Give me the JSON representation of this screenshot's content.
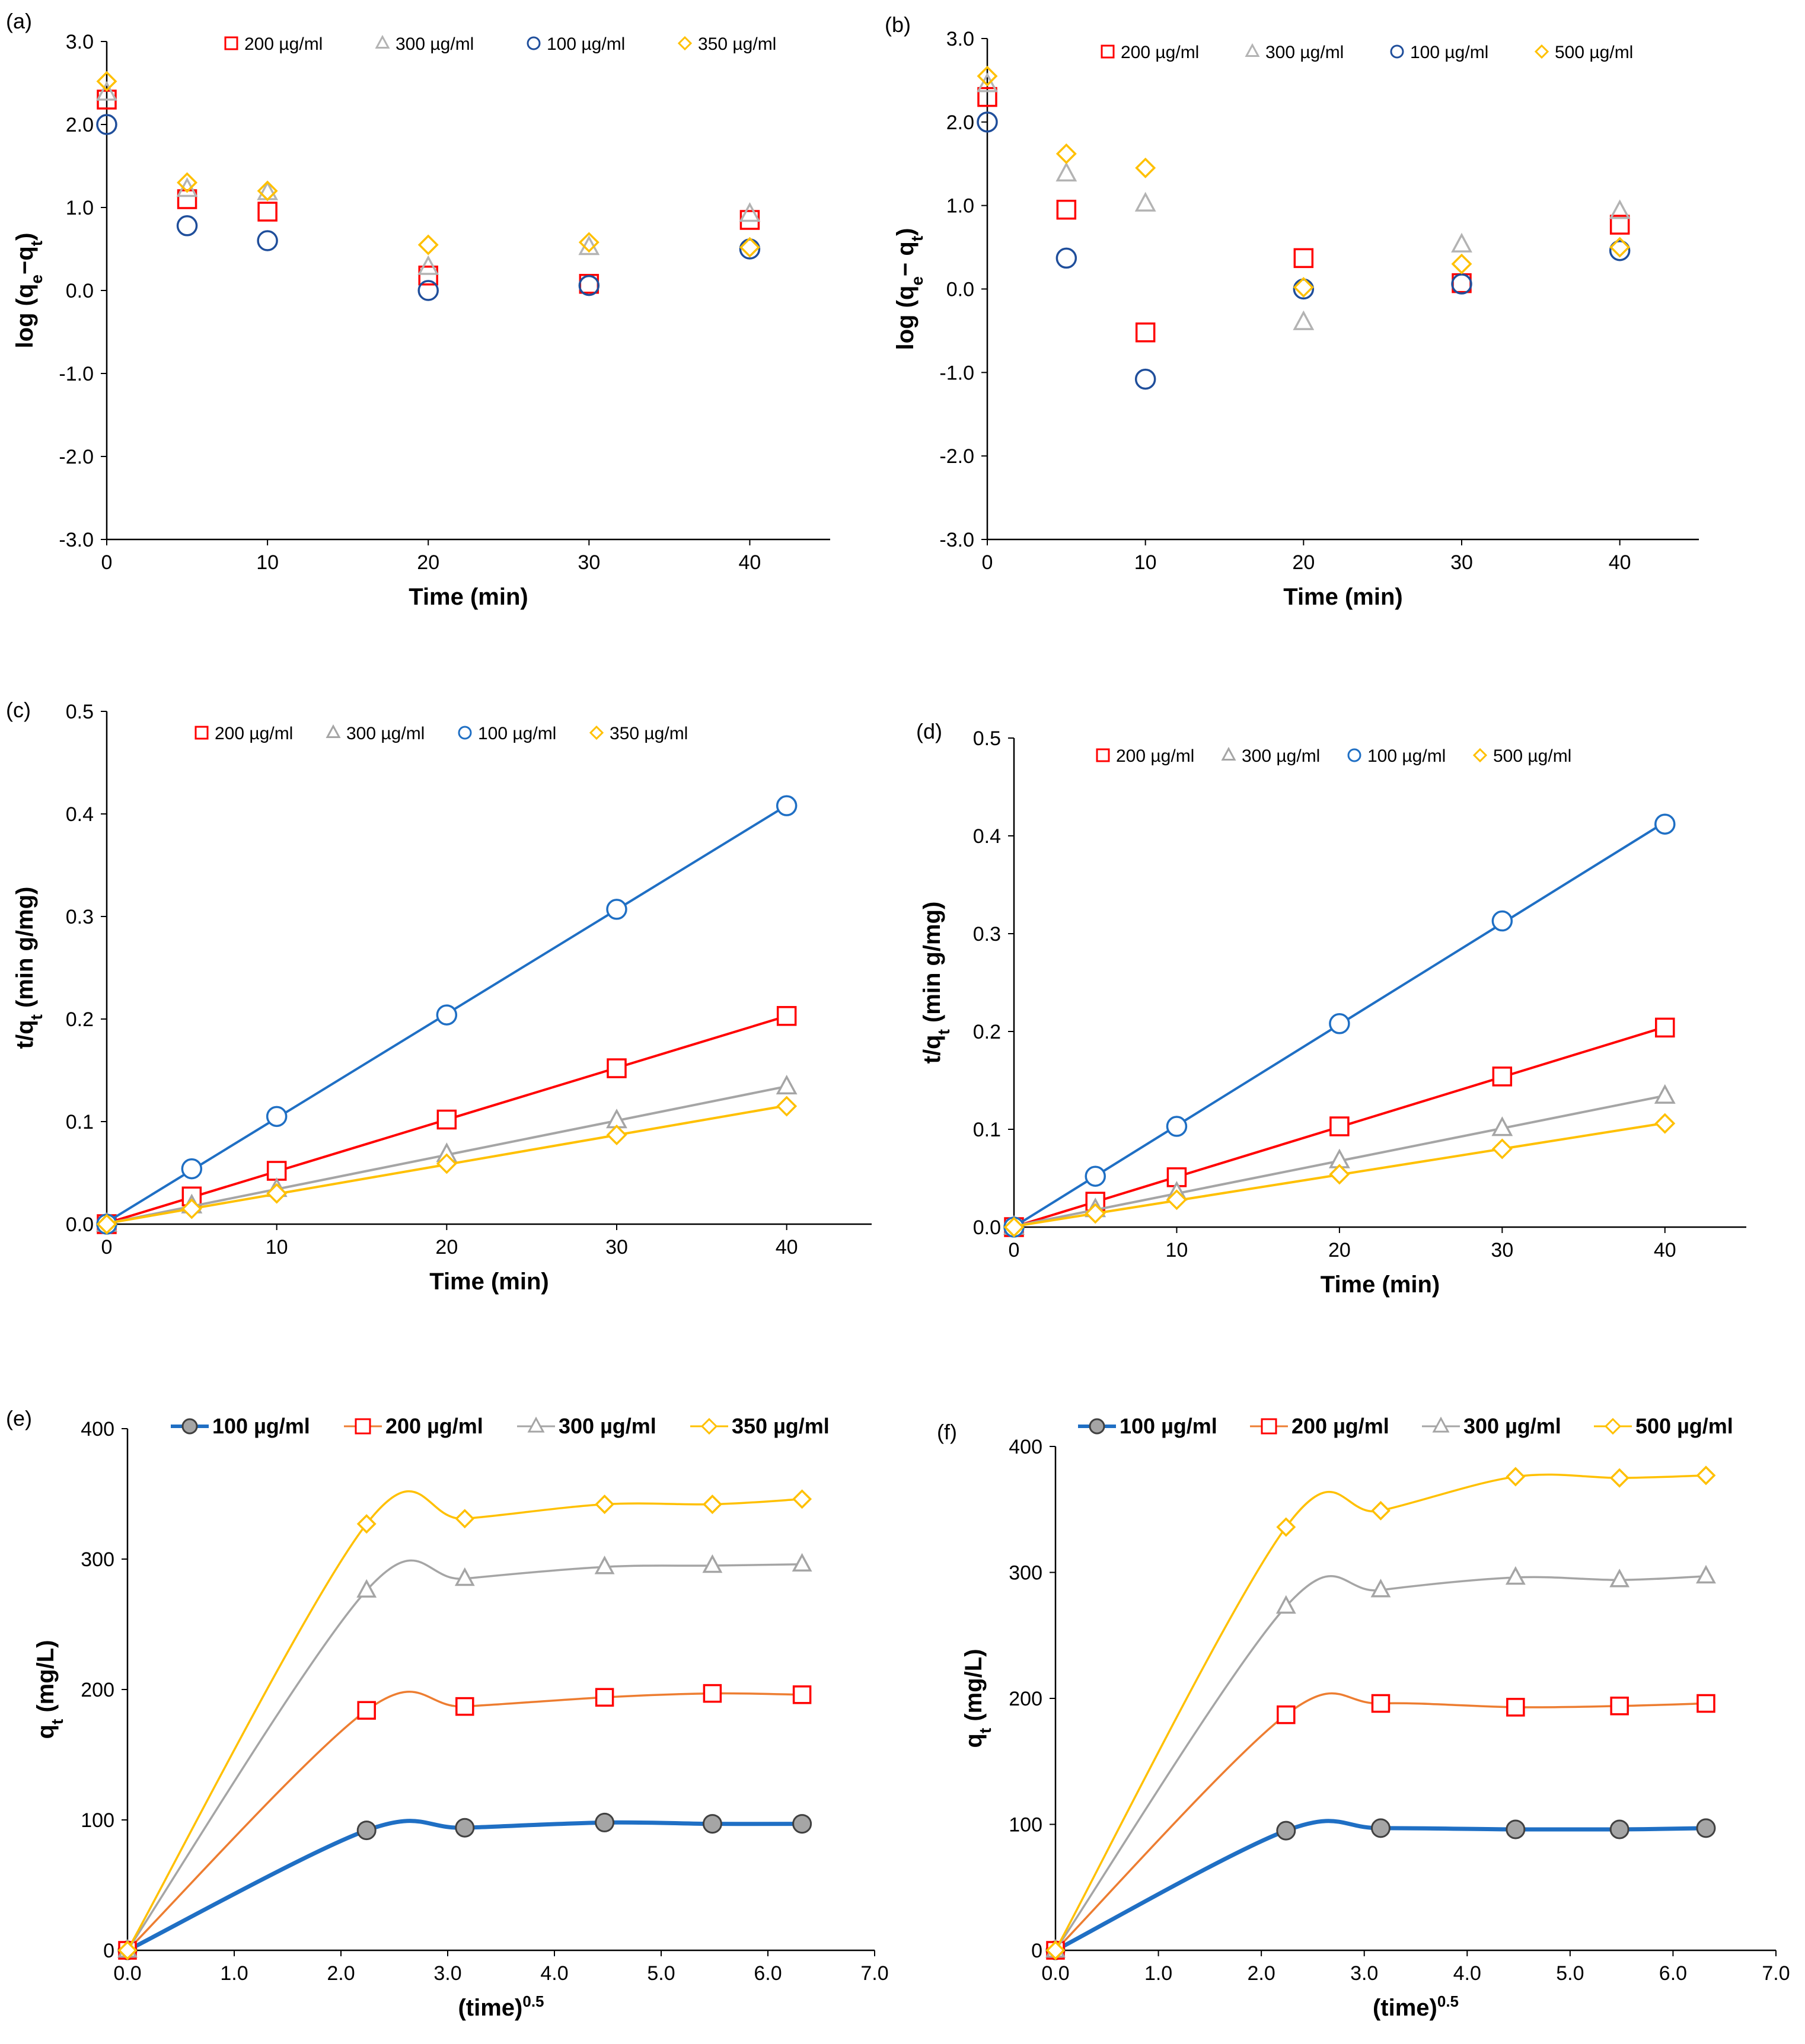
{
  "chart_data": [
    {
      "panel": "(a)",
      "type": "scatter",
      "xlabel": "Time (min)",
      "ylabel": "log (q_e−q_t)",
      "ylabel_parts": [
        "log (q",
        "e",
        "−q",
        "t",
        ")"
      ],
      "xlim": [
        0,
        45
      ],
      "ylim": [
        -3,
        3
      ],
      "x_ticks": [
        0,
        10,
        20,
        30,
        40
      ],
      "y_ticks": [
        -3,
        -2,
        -1,
        0,
        1,
        2,
        3
      ],
      "x_decimals": 0,
      "y_decimals": 1,
      "fit_lines": false,
      "smooth": false,
      "legend_style": "small",
      "series": [
        {
          "name": "200  µg/ml",
          "marker": "square",
          "color": "#ff0000",
          "x": [
            0,
            5,
            10,
            20,
            30,
            40
          ],
          "y": [
            2.3,
            1.1,
            0.95,
            0.18,
            0.08,
            0.85
          ]
        },
        {
          "name": "300  µg/ml",
          "marker": "triangle",
          "color": "#b3b3b3",
          "x": [
            0,
            5,
            10,
            20,
            30,
            40
          ],
          "y": [
            2.38,
            1.22,
            1.18,
            0.28,
            0.52,
            0.92
          ]
        },
        {
          "name": "100  µg/ml",
          "marker": "circle",
          "color": "#1f4e9b",
          "x": [
            0,
            5,
            10,
            20,
            30,
            40
          ],
          "y": [
            2.0,
            0.78,
            0.6,
            0.0,
            0.06,
            0.5
          ]
        },
        {
          "name": "350  µg/ml",
          "marker": "diamond",
          "color": "#ffc000",
          "x": [
            0,
            5,
            10,
            20,
            30,
            40
          ],
          "y": [
            2.52,
            1.3,
            1.2,
            0.55,
            0.58,
            0.52
          ]
        }
      ]
    },
    {
      "panel": "(b)",
      "type": "scatter",
      "xlabel": "Time (min)",
      "ylabel": "log (q_e− q_t)",
      "ylabel_parts": [
        "log (q",
        "e",
        "− q",
        "t",
        ")"
      ],
      "xlim": [
        0,
        45
      ],
      "ylim": [
        -3,
        3
      ],
      "x_ticks": [
        0,
        10,
        20,
        30,
        40
      ],
      "y_ticks": [
        -3,
        -2,
        -1,
        0,
        1,
        2,
        3
      ],
      "x_decimals": 0,
      "y_decimals": 1,
      "fit_lines": false,
      "smooth": false,
      "legend_style": "small",
      "series": [
        {
          "name": "200  µg/ml",
          "marker": "square",
          "color": "#ff0000",
          "x": [
            0,
            5,
            10,
            20,
            30,
            40
          ],
          "y": [
            2.3,
            0.95,
            -0.52,
            0.37,
            0.07,
            0.77
          ]
        },
        {
          "name": "300  µg/ml",
          "marker": "triangle",
          "color": "#b3b3b3",
          "x": [
            0,
            5,
            10,
            20,
            30,
            40
          ],
          "y": [
            2.45,
            1.38,
            1.02,
            -0.4,
            0.53,
            0.93
          ]
        },
        {
          "name": "100  µg/ml",
          "marker": "circle",
          "color": "#1f4e9b",
          "x": [
            0,
            5,
            10,
            20,
            30,
            40
          ],
          "y": [
            2.0,
            0.37,
            -1.08,
            0.0,
            0.06,
            0.46
          ]
        },
        {
          "name": "500  µg/ml",
          "marker": "diamond",
          "color": "#ffc000",
          "x": [
            0,
            5,
            10,
            20,
            30,
            40
          ],
          "y": [
            2.55,
            1.62,
            1.45,
            0.02,
            0.3,
            0.5
          ]
        }
      ]
    },
    {
      "panel": "(c)",
      "type": "scatter",
      "xlabel": "Time (min)",
      "ylabel": "t/q_t (min g/mg)",
      "ylabel_parts": [
        "t/q",
        "t",
        " (min g/mg)"
      ],
      "xlim": [
        0,
        45
      ],
      "ylim": [
        0,
        0.5
      ],
      "x_ticks": [
        0,
        10,
        20,
        30,
        40
      ],
      "y_ticks": [
        0,
        0.1,
        0.2,
        0.3,
        0.4,
        0.5
      ],
      "x_decimals": 0,
      "y_decimals": 1,
      "fit_lines": true,
      "smooth": false,
      "legend_style": "small",
      "series": [
        {
          "name": "200  µg/ml",
          "marker": "square",
          "color": "#ff0000",
          "x": [
            0,
            5,
            10,
            20,
            30,
            40
          ],
          "y": [
            0,
            0.027,
            0.052,
            0.102,
            0.152,
            0.203
          ]
        },
        {
          "name": "300  µg/ml",
          "marker": "triangle",
          "color": "#a5a5a5",
          "x": [
            0,
            5,
            10,
            20,
            30,
            40
          ],
          "y": [
            0,
            0.018,
            0.034,
            0.068,
            0.101,
            0.134
          ]
        },
        {
          "name": "100  µg/ml",
          "marker": "circle",
          "color": "#1f6fc4",
          "x": [
            0,
            5,
            10,
            20,
            30,
            40
          ],
          "y": [
            0,
            0.054,
            0.105,
            0.204,
            0.307,
            0.408
          ]
        },
        {
          "name": "350  µg/ml",
          "marker": "diamond",
          "color": "#ffc000",
          "x": [
            0,
            5,
            10,
            20,
            30,
            40
          ],
          "y": [
            0,
            0.015,
            0.03,
            0.059,
            0.087,
            0.115
          ]
        }
      ]
    },
    {
      "panel": "(d)",
      "type": "scatter",
      "xlabel": "Time (min)",
      "ylabel": "t/q_t (min g/mg)",
      "ylabel_parts": [
        "t/q",
        "t",
        " (min g/mg)"
      ],
      "xlim": [
        0,
        45
      ],
      "ylim": [
        0,
        0.5
      ],
      "x_ticks": [
        0,
        10,
        20,
        30,
        40
      ],
      "y_ticks": [
        0,
        0.1,
        0.2,
        0.3,
        0.4,
        0.5
      ],
      "x_decimals": 0,
      "y_decimals": 1,
      "fit_lines": true,
      "smooth": false,
      "legend_style": "small",
      "series": [
        {
          "name": "200  µg/ml",
          "marker": "square",
          "color": "#ff0000",
          "x": [
            0,
            5,
            10,
            20,
            30,
            40
          ],
          "y": [
            0,
            0.026,
            0.051,
            0.103,
            0.154,
            0.204
          ]
        },
        {
          "name": "300  µg/ml",
          "marker": "triangle",
          "color": "#a5a5a5",
          "x": [
            0,
            5,
            10,
            20,
            30,
            40
          ],
          "y": [
            0,
            0.018,
            0.035,
            0.068,
            0.101,
            0.134
          ]
        },
        {
          "name": "100  µg/ml",
          "marker": "circle",
          "color": "#1f6fc4",
          "x": [
            0,
            5,
            10,
            20,
            30,
            40
          ],
          "y": [
            0,
            0.052,
            0.103,
            0.208,
            0.313,
            0.412
          ]
        },
        {
          "name": "500  µg/ml",
          "marker": "diamond",
          "color": "#ffc000",
          "x": [
            0,
            5,
            10,
            20,
            30,
            40
          ],
          "y": [
            0,
            0.014,
            0.028,
            0.054,
            0.08,
            0.106
          ]
        }
      ]
    },
    {
      "panel": "(e)",
      "type": "line",
      "xlabel": "(time)^0.5",
      "xlabel_parts": [
        "(time)",
        "0.5"
      ],
      "ylabel": "q_t (mg/L)",
      "ylabel_parts": [
        "q",
        "t",
        " (mg/L)"
      ],
      "xlim": [
        0,
        7
      ],
      "ylim": [
        0,
        400
      ],
      "x_ticks": [
        0,
        1,
        2,
        3,
        4,
        5,
        6,
        7
      ],
      "y_ticks": [
        0,
        100,
        200,
        300,
        400
      ],
      "x_decimals": 1,
      "y_decimals": 0,
      "fit_lines": false,
      "smooth": true,
      "legend_style": "large",
      "series": [
        {
          "name": "100  µg/ml",
          "marker": "circle",
          "color": "#1f6fc4",
          "line_color": "#1f6fc4",
          "x": [
            0,
            2.24,
            3.16,
            4.47,
            5.48,
            6.32
          ],
          "y": [
            0,
            92,
            94,
            98,
            97,
            97
          ]
        },
        {
          "name": "200  µg/ml",
          "marker": "square",
          "color": "#ff0000",
          "line_color": "#ed7d31",
          "x": [
            0,
            2.24,
            3.16,
            4.47,
            5.48,
            6.32
          ],
          "y": [
            0,
            184,
            187,
            194,
            197,
            196
          ]
        },
        {
          "name": "300  µg/ml",
          "marker": "triangle",
          "color": "#a5a5a5",
          "line_color": "#a5a5a5",
          "x": [
            0,
            2.24,
            3.16,
            4.47,
            5.48,
            6.32
          ],
          "y": [
            0,
            276,
            285,
            294,
            295,
            296
          ]
        },
        {
          "name": "350  µg/ml",
          "marker": "diamond",
          "color": "#ffc000",
          "line_color": "#ffc000",
          "x": [
            0,
            2.24,
            3.16,
            4.47,
            5.48,
            6.32
          ],
          "y": [
            0,
            327,
            331,
            342,
            342,
            346
          ]
        }
      ]
    },
    {
      "panel": "(f)",
      "type": "line",
      "xlabel": "(time)^0.5",
      "xlabel_parts": [
        "(time)",
        "0.5"
      ],
      "ylabel": "q_t (mg/L)",
      "ylabel_parts": [
        "q",
        "t",
        " (mg/L)"
      ],
      "xlim": [
        0,
        7
      ],
      "ylim": [
        0,
        400
      ],
      "x_ticks": [
        0,
        1,
        2,
        3,
        4,
        5,
        6,
        7
      ],
      "y_ticks": [
        0,
        100,
        200,
        300,
        400
      ],
      "x_decimals": 1,
      "y_decimals": 0,
      "fit_lines": false,
      "smooth": true,
      "legend_style": "large",
      "series": [
        {
          "name": "100  µg/ml",
          "marker": "circle",
          "color": "#1f6fc4",
          "line_color": "#1f6fc4",
          "x": [
            0,
            2.24,
            3.16,
            4.47,
            5.48,
            6.32
          ],
          "y": [
            0,
            95,
            97,
            96,
            96,
            97
          ]
        },
        {
          "name": "200  µg/ml",
          "marker": "square",
          "color": "#ff0000",
          "line_color": "#ed7d31",
          "x": [
            0,
            2.24,
            3.16,
            4.47,
            5.48,
            6.32
          ],
          "y": [
            0,
            187,
            196,
            193,
            194,
            196
          ]
        },
        {
          "name": "300  µg/ml",
          "marker": "triangle",
          "color": "#a5a5a5",
          "line_color": "#a5a5a5",
          "x": [
            0,
            2.24,
            3.16,
            4.47,
            5.48,
            6.32
          ],
          "y": [
            0,
            273,
            286,
            296,
            294,
            297
          ]
        },
        {
          "name": "500  µg/ml",
          "marker": "diamond",
          "color": "#ffc000",
          "line_color": "#ffc000",
          "x": [
            0,
            2.24,
            3.16,
            4.47,
            5.48,
            6.32
          ],
          "y": [
            0,
            336,
            349,
            376,
            375,
            377
          ]
        }
      ]
    }
  ]
}
